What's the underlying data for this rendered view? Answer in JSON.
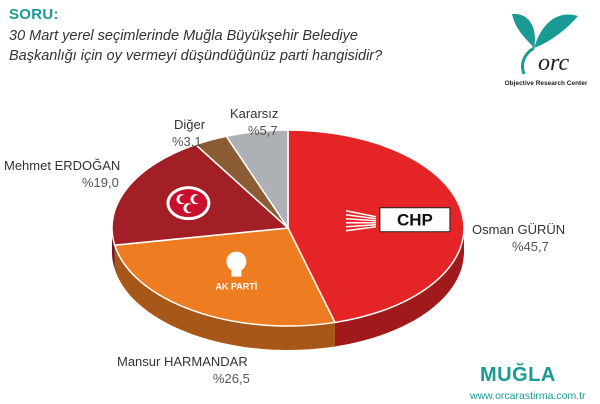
{
  "header": {
    "soru_label": "SORU:",
    "question_line1": "30 Mart yerel seçimlerinde Muğla Büyükşehir Belediye",
    "question_line2": "Başkanlığı için oy vermeyi düşündüğünüz parti hangisidir?"
  },
  "logo": {
    "caption": "Objective Research Center",
    "brand_color": "#1a9a95"
  },
  "chart_data": {
    "type": "pie",
    "style": "3d",
    "slices": [
      {
        "name": "Osman GÜRÜN",
        "value_label": "%45,7",
        "value": 45.7,
        "color": "#e42426",
        "party_label": "CHP"
      },
      {
        "name": "Mansur HARMANDAR",
        "value_label": "%26,5",
        "value": 26.5,
        "color": "#ee7d22",
        "party_label": "AK PARTİ"
      },
      {
        "name": "Mehmet ERDOĞAN",
        "value_label": "%19,0",
        "value": 19.0,
        "color": "#a11f25",
        "party_label": ""
      },
      {
        "name": "Diğer",
        "value_label": "%3,1",
        "value": 3.1,
        "color": "#8c5d34",
        "party_label": ""
      },
      {
        "name": "Kararsız",
        "value_label": "%5,7",
        "value": 5.7,
        "color": "#adb0b4",
        "party_label": ""
      }
    ]
  },
  "footer": {
    "city": "MUĞLA",
    "url": "www.orcarastirma.com.tr"
  }
}
